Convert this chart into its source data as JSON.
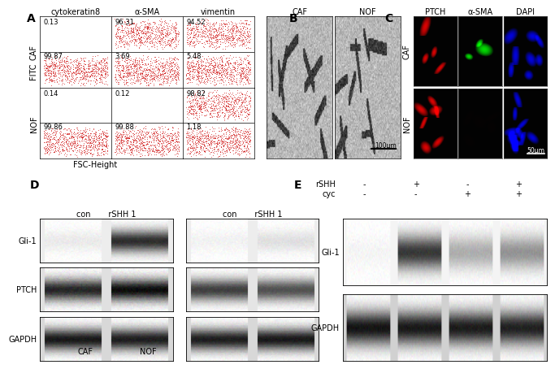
{
  "panel_A": {
    "label": "A",
    "col_labels": [
      "cytokeratin8",
      "α-SMA",
      "vimentin"
    ],
    "row_labels": [
      "CAF",
      "NOF"
    ],
    "xlabel": "FSC-Height",
    "ylabel": "FITC",
    "cell_data": {
      "CAF_cytokeratin8": {
        "upper": "0.13",
        "lower": "99.87",
        "has_upper_dots": false,
        "has_lower_dots": true
      },
      "CAF_aSMA": {
        "upper": "96.31",
        "lower": "3.69",
        "has_upper_dots": true,
        "has_lower_dots": true
      },
      "CAF_vimentin": {
        "upper": "94.52",
        "lower": "5.48",
        "has_upper_dots": true,
        "has_lower_dots": true
      },
      "NOF_cytokeratin8": {
        "upper": "0.14",
        "lower": "99.86",
        "has_upper_dots": false,
        "has_lower_dots": true
      },
      "NOF_aSMA": {
        "upper": "0.12",
        "lower": "99.88",
        "has_upper_dots": false,
        "has_lower_dots": true
      },
      "NOF_vimentin": {
        "upper": "98.82",
        "lower": "1.18",
        "has_upper_dots": true,
        "has_lower_dots": true
      }
    }
  },
  "panel_B": {
    "label": "B",
    "col_labels": [
      "CAF",
      "NOF"
    ],
    "scale_bar": "100μm"
  },
  "panel_C": {
    "label": "C",
    "col_labels": [
      "PTCH",
      "α-SMA",
      "DAPI"
    ],
    "row_labels": [
      "CAF",
      "NOF"
    ],
    "scale_bar": "50μm"
  },
  "panel_D": {
    "label": "D",
    "col_labels": [
      "con",
      "rSHH 1",
      "con",
      "rSHH 1"
    ],
    "row_labels": [
      "Gli-1",
      "PTCH",
      "GAPDH"
    ],
    "group_labels": [
      "CAF",
      "NOF"
    ]
  },
  "panel_E": {
    "label": "E",
    "rSHH_row": [
      "-",
      "+",
      "-",
      "+"
    ],
    "cyc_row": [
      "-",
      "-",
      "+",
      "+"
    ],
    "row_labels": [
      "Gli-1",
      "GAPDH"
    ]
  },
  "bg_color": "#ffffff",
  "text_color": "#000000",
  "dot_color": "#cc0000",
  "font_size": 7
}
